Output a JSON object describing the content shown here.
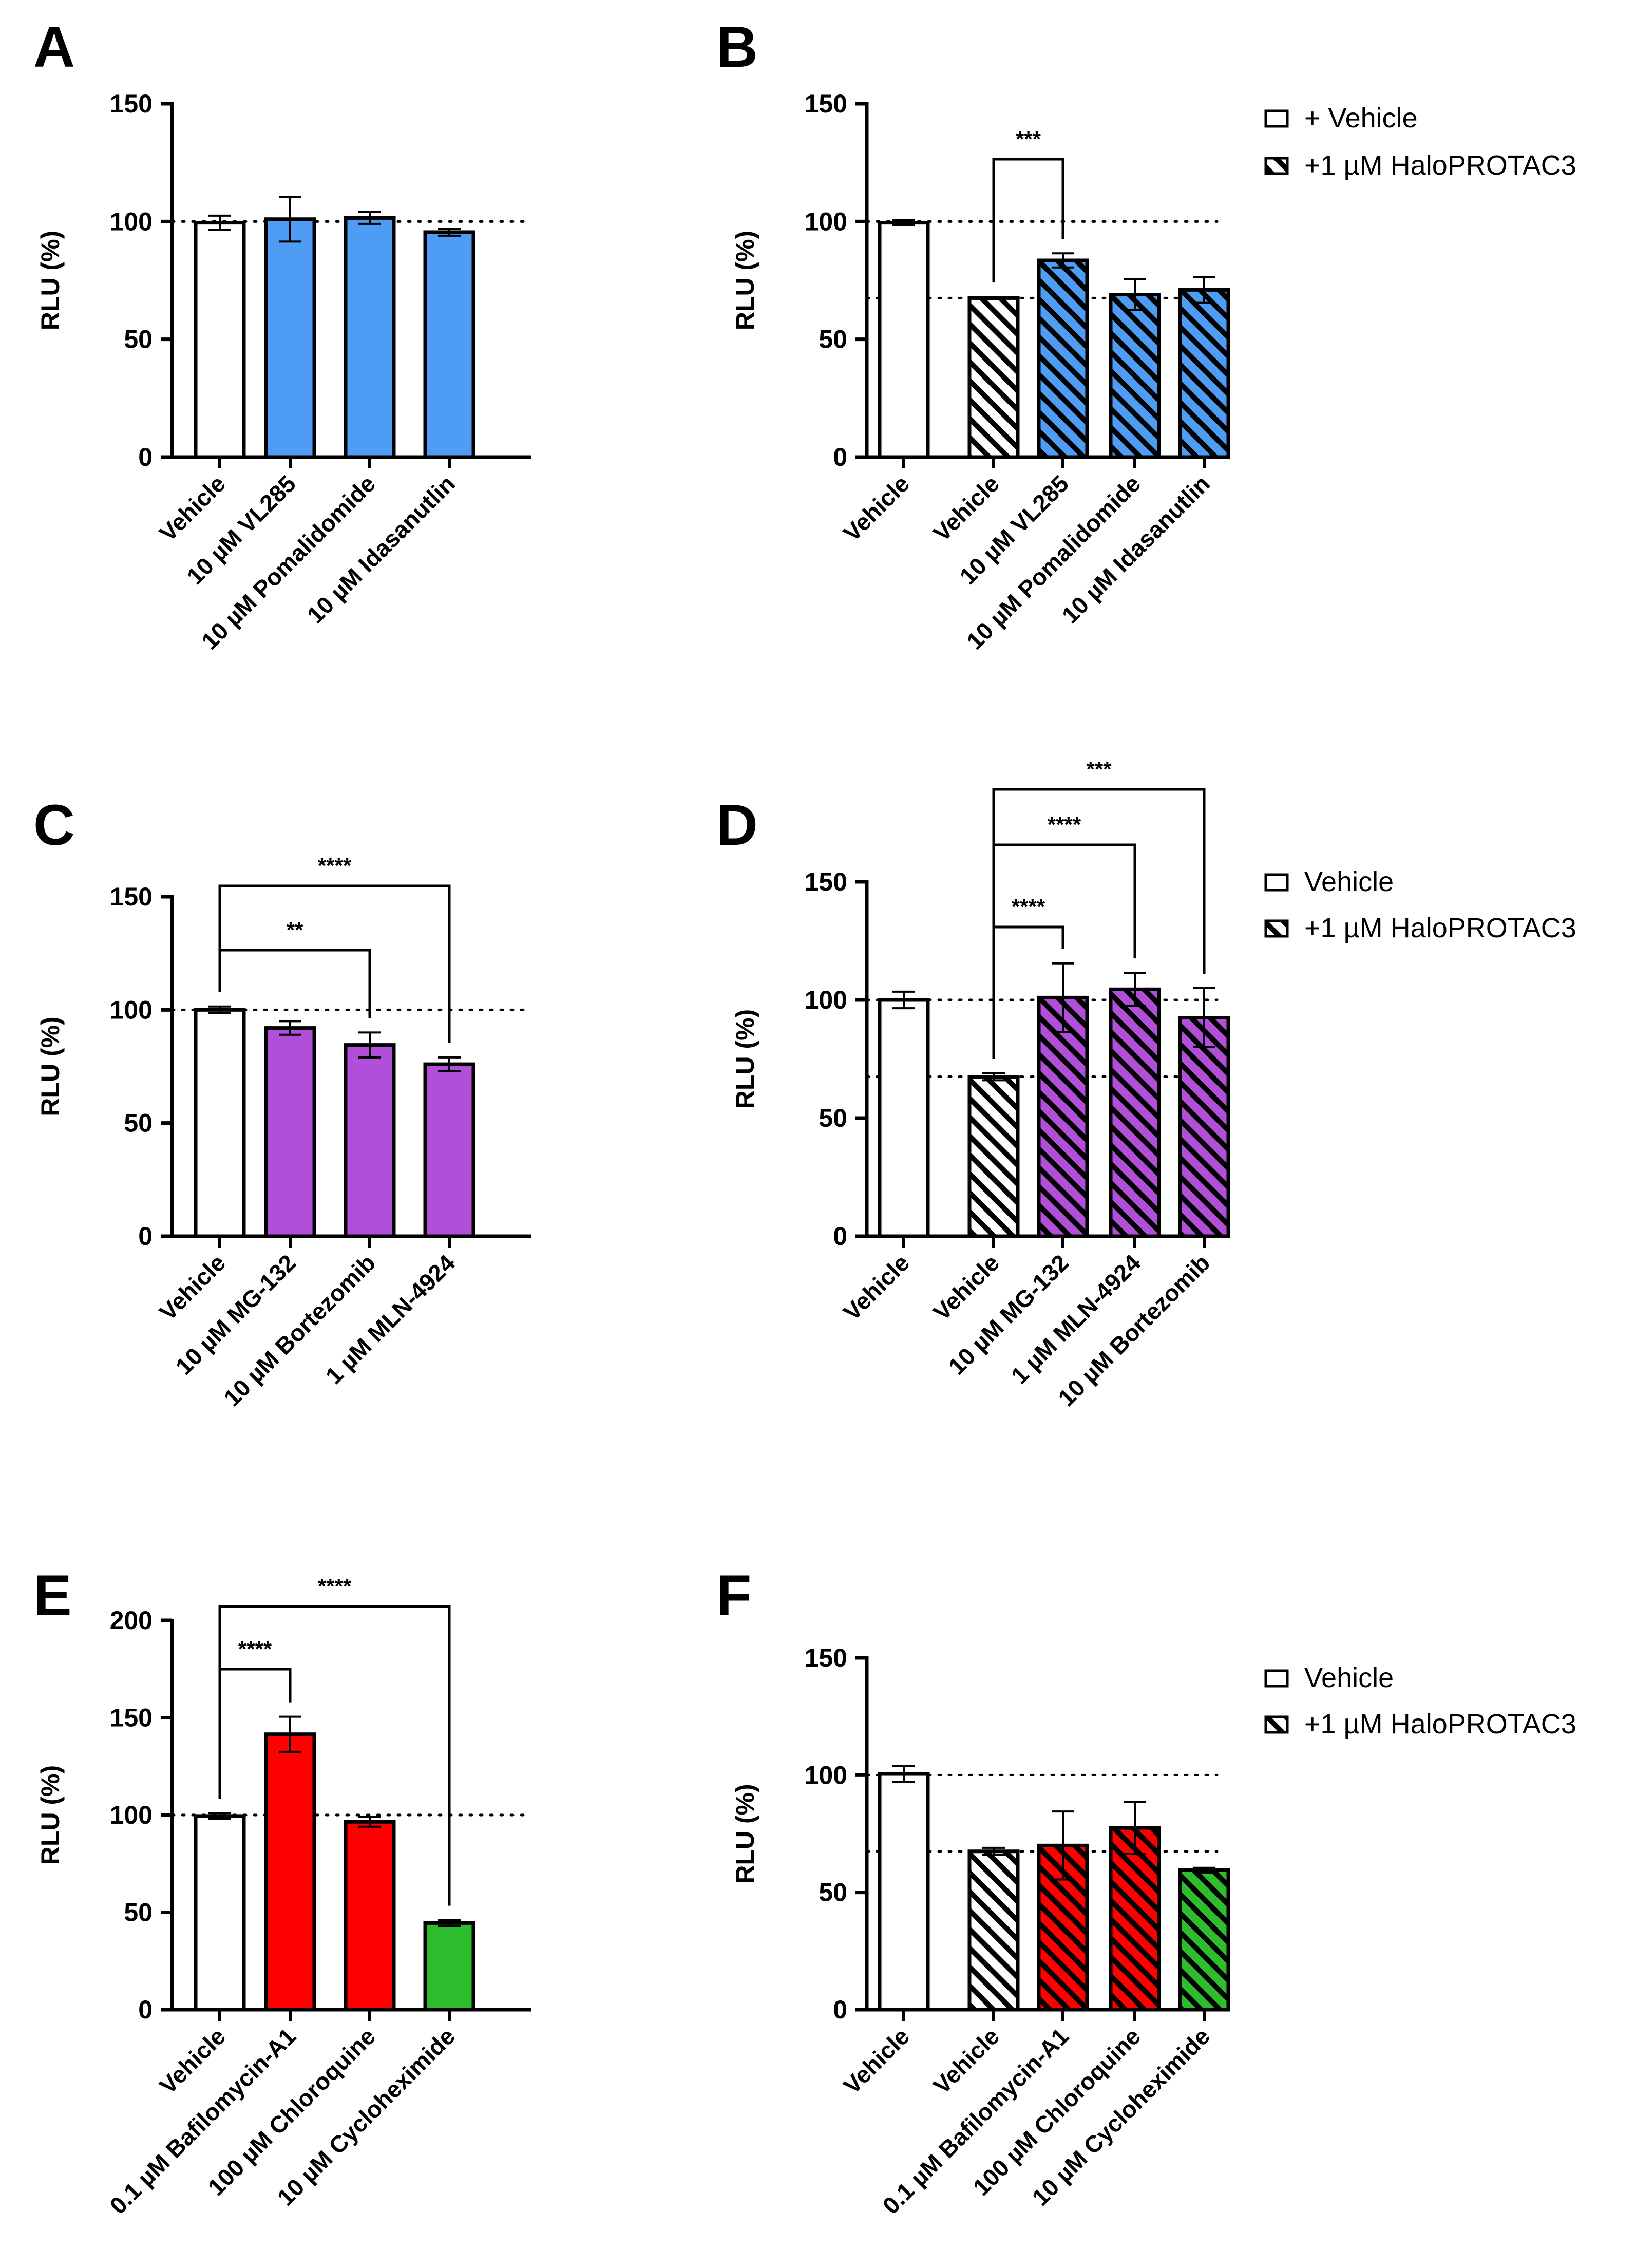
{
  "colors": {
    "white": "#ffffff",
    "blue": "#4f9cf5",
    "purple": "#b14fd8",
    "red": "#ff0000",
    "green": "#2dbd2d",
    "axis": "#000000"
  },
  "chart_data": [
    {
      "panel": "A",
      "type": "bar",
      "ylabel": "RLU (%)",
      "ylim": [
        0,
        150
      ],
      "yticks": [
        "0",
        "50",
        "100",
        "150"
      ],
      "ref_lines": [
        100
      ],
      "categories": [
        "Vehicle",
        "10 µM VL285",
        "10 µM Pomalidomide",
        "10 µM Idasanutlin"
      ],
      "values": [
        99.5,
        101,
        101.5,
        95.5
      ],
      "errors": [
        3,
        9.5,
        2.5,
        1.5
      ],
      "colors": [
        "white",
        "blue",
        "blue",
        "blue"
      ],
      "hatched": [
        false,
        false,
        false,
        false
      ],
      "significance": []
    },
    {
      "panel": "B",
      "type": "bar",
      "ylabel": "RLU (%)",
      "ylim": [
        0,
        150
      ],
      "yticks": [
        "0",
        "50",
        "100",
        "150"
      ],
      "ref_lines": [
        100,
        67.5
      ],
      "categories": [
        "Vehicle",
        "Vehicle",
        "10 µM VL285",
        "10 µM Pomalidomide",
        "10 µM Idasanutlin"
      ],
      "values": [
        99.5,
        67.5,
        83.5,
        69,
        71
      ],
      "errors": [
        1,
        0.5,
        3,
        6.5,
        5.5
      ],
      "colors": [
        "white",
        "white",
        "blue",
        "blue",
        "blue"
      ],
      "hatched": [
        false,
        true,
        true,
        true,
        true
      ],
      "significance": [
        {
          "from": 1,
          "to": 2,
          "label": "***"
        }
      ],
      "legend": [
        {
          "label": "+ Vehicle",
          "hatched": false
        },
        {
          "label": "+1 µM HaloPROTAC3",
          "hatched": true
        }
      ]
    },
    {
      "panel": "C",
      "type": "bar",
      "ylabel": "RLU (%)",
      "ylim": [
        0,
        150
      ],
      "yticks": [
        "0",
        "50",
        "100",
        "150"
      ],
      "ref_lines": [
        100
      ],
      "categories": [
        "Vehicle",
        "10 µM MG-132",
        "10 µM Bortezomib",
        "1 µM MLN-4924"
      ],
      "values": [
        100,
        92,
        84.5,
        76
      ],
      "errors": [
        1.5,
        3,
        5.5,
        3
      ],
      "colors": [
        "white",
        "purple",
        "purple",
        "purple"
      ],
      "hatched": [
        false,
        false,
        false,
        false
      ],
      "significance": [
        {
          "from": 0,
          "to": 2,
          "label": "**"
        },
        {
          "from": 0,
          "to": 3,
          "label": "****"
        }
      ]
    },
    {
      "panel": "D",
      "type": "bar",
      "ylabel": "RLU (%)",
      "ylim": [
        0,
        150
      ],
      "yticks": [
        "0",
        "50",
        "100",
        "150"
      ],
      "ref_lines": [
        100,
        67.5
      ],
      "categories": [
        "Vehicle",
        "Vehicle",
        "10 µM MG-132",
        "1 µM MLN-4924",
        "10 µM Bortezomib"
      ],
      "values": [
        100,
        67.5,
        101,
        104.5,
        92.5
      ],
      "errors": [
        3.5,
        1.5,
        14.5,
        7,
        12.5
      ],
      "colors": [
        "white",
        "white",
        "purple",
        "purple",
        "purple"
      ],
      "hatched": [
        false,
        true,
        true,
        true,
        true
      ],
      "significance": [
        {
          "from": 1,
          "to": 2,
          "label": "****"
        },
        {
          "from": 1,
          "to": 3,
          "label": "****"
        },
        {
          "from": 1,
          "to": 4,
          "label": "***"
        }
      ],
      "legend": [
        {
          "label": "Vehicle",
          "hatched": false
        },
        {
          "label": "+1 µM HaloPROTAC3",
          "hatched": true
        }
      ]
    },
    {
      "panel": "E",
      "type": "bar",
      "ylabel": "RLU (%)",
      "ylim": [
        0,
        200
      ],
      "yticks": [
        "0",
        "50",
        "100",
        "150",
        "200"
      ],
      "ref_lines": [
        100
      ],
      "categories": [
        "Vehicle",
        "0.1 µM Bafilomycin-A1",
        "100 µM Chloroquine",
        "10 µM Cycloheximide"
      ],
      "values": [
        99.5,
        141.5,
        96.5,
        44.5
      ],
      "errors": [
        1.5,
        9,
        2.5,
        1.5
      ],
      "colors": [
        "white",
        "red",
        "red",
        "green"
      ],
      "hatched": [
        false,
        false,
        false,
        false
      ],
      "significance": [
        {
          "from": 0,
          "to": 1,
          "label": "****"
        },
        {
          "from": 0,
          "to": 3,
          "label": "****"
        }
      ]
    },
    {
      "panel": "F",
      "type": "bar",
      "ylabel": "RLU (%)",
      "ylim": [
        0,
        150
      ],
      "yticks": [
        "0",
        "50",
        "100",
        "150"
      ],
      "ref_lines": [
        100,
        67.5
      ],
      "categories": [
        "Vehicle",
        "Vehicle",
        "0.1 µM Bafilomycin-A1",
        "100 µM Chloroquine",
        "10 µM Cycloheximide"
      ],
      "values": [
        100.5,
        67.5,
        70,
        77.5,
        59.5
      ],
      "errors": [
        3.5,
        1.5,
        14.5,
        11,
        1
      ],
      "colors": [
        "white",
        "white",
        "red",
        "red",
        "green"
      ],
      "hatched": [
        false,
        true,
        true,
        true,
        true
      ],
      "significance": [],
      "legend": [
        {
          "label": "Vehicle",
          "hatched": false
        },
        {
          "label": "+1 µM HaloPROTAC3",
          "hatched": true
        }
      ]
    }
  ]
}
